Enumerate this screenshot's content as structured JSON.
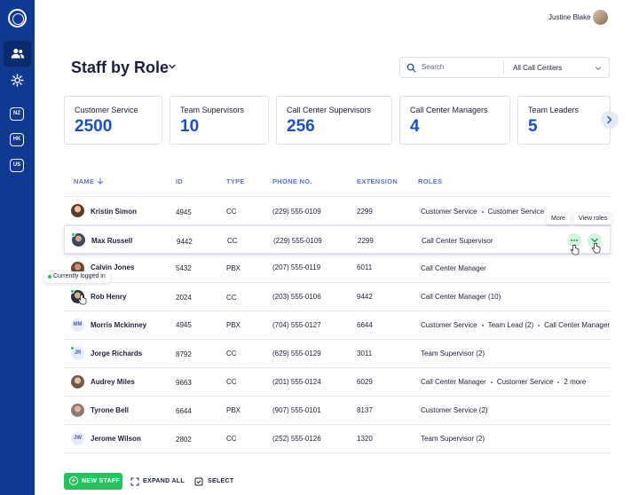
{
  "user": {
    "name": "Justine Blake"
  },
  "sidebar": {
    "regions": [
      "NZ",
      "HK",
      "US"
    ]
  },
  "page": {
    "title": "Staff by Role"
  },
  "search": {
    "placeholder": "Search",
    "filter_value": "All Call Centers"
  },
  "stats": [
    {
      "label": "Customer Service",
      "value": "2500"
    },
    {
      "label": "Team Supervisors",
      "value": "10"
    },
    {
      "label": "Call Center Supervisors",
      "value": "256"
    },
    {
      "label": "Call Center Managers",
      "value": "4"
    },
    {
      "label": "Team Leaders",
      "value": "5"
    }
  ],
  "table": {
    "headers": {
      "name": "NAME",
      "id": "ID",
      "type": "TYPE",
      "phone": "PHONE NO.",
      "extension": "EXTENSION",
      "roles": "ROLES"
    },
    "rows": [
      {
        "name": "Kristin Simon",
        "id": "4945",
        "type": "CC",
        "phone": "(229) 555-0109",
        "extension": "2299",
        "roles": [
          "Customer Service",
          "Customer Service"
        ],
        "avatar": "photo",
        "online": false
      },
      {
        "name": "Max Russell",
        "id": "9442",
        "type": "CC",
        "phone": "(229) 555-0109",
        "extension": "2299",
        "roles": [
          "Call Center Supervisor"
        ],
        "avatar": "photo",
        "online": true
      },
      {
        "name": "Calvin Jones",
        "id": "5432",
        "type": "PBX",
        "phone": "(207) 555-0119",
        "extension": "6011",
        "roles": [
          "Call Center Manager"
        ],
        "avatar": "photo",
        "online": false
      },
      {
        "name": "Rob Henry",
        "id": "2024",
        "type": "CC",
        "phone": "(203) 555-0106",
        "extension": "9442",
        "roles": [
          "Call Center Manager (10)"
        ],
        "avatar": "photo",
        "online": true
      },
      {
        "name": "Morris Mckinney",
        "id": "4945",
        "type": "PBX",
        "phone": "(704) 555-0127",
        "extension": "6644",
        "roles": [
          "Customer Service",
          "Team Lead (2)",
          "Call Center Manager"
        ],
        "avatar": "MM",
        "online": false
      },
      {
        "name": "Jorge Richards",
        "id": "8792",
        "type": "CC",
        "phone": "(629) 555-0129",
        "extension": "3011",
        "roles": [
          "Team Supervisor (2)"
        ],
        "avatar": "JR",
        "online": true
      },
      {
        "name": "Audrey Miles",
        "id": "9663",
        "type": "CC",
        "phone": "(201) 555-0124",
        "extension": "6029",
        "roles": [
          "Call Center Manager",
          "Customer Service",
          "2 more"
        ],
        "avatar": "photo",
        "online": false
      },
      {
        "name": "Tyrone Bell",
        "id": "6644",
        "type": "PBX",
        "phone": "(907) 555-0101",
        "extension": "8137",
        "roles": [
          "Customer Service (2)"
        ],
        "avatar": "photo",
        "online": false
      },
      {
        "name": "Jerome Wilson",
        "id": "2802",
        "type": "CC",
        "phone": "(252) 555-0126",
        "extension": "1320",
        "roles": [
          "Team Supervisor (2)"
        ],
        "avatar": "JW",
        "online": false
      }
    ]
  },
  "tooltips": {
    "more": "More",
    "view_roles": "View roles",
    "status": "Currently logged in"
  },
  "actions": {
    "new_staff": "NEW STAFF",
    "expand_all": "EXPAND ALL",
    "select": "SELECT"
  },
  "colors": {
    "sidebar": "#0f3a8f",
    "accent": "#1b4fbf",
    "green": "#27c25e",
    "header_text": "#5877c6"
  }
}
